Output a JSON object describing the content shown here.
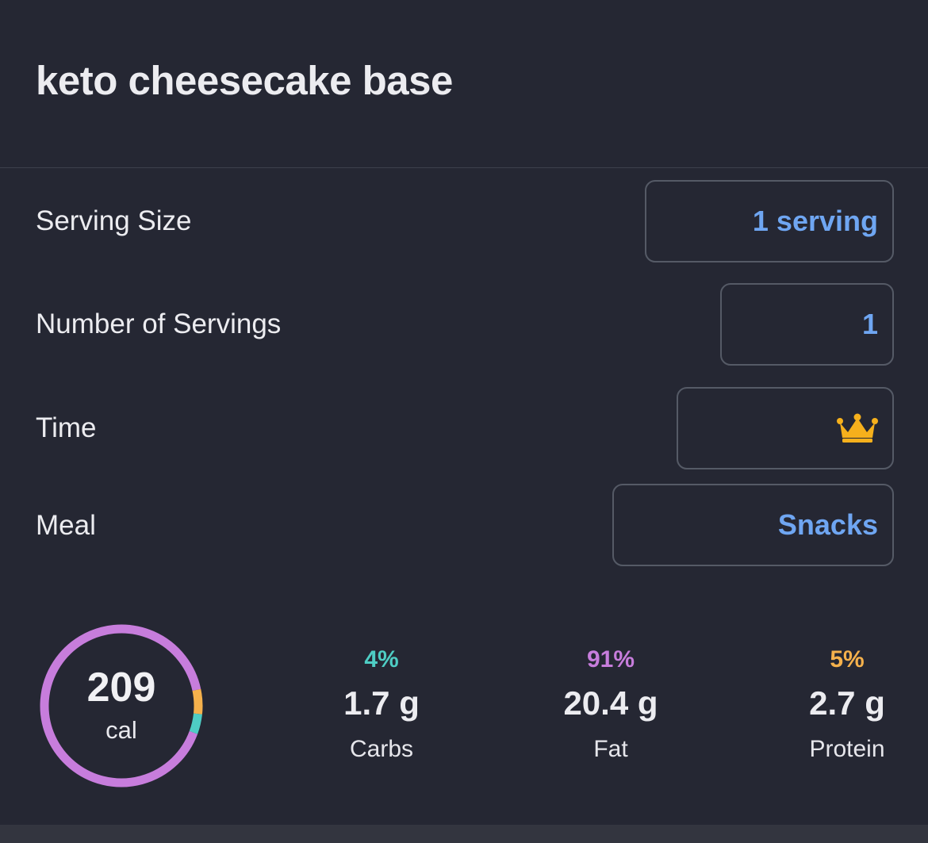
{
  "food": {
    "title": "keto cheesecake base"
  },
  "fields": {
    "serving_size": {
      "label": "Serving Size",
      "value": "1 serving"
    },
    "number_of_servings": {
      "label": "Number of Servings",
      "value": "1"
    },
    "time": {
      "label": "Time",
      "icon": "crown-icon"
    },
    "meal": {
      "label": "Meal",
      "value": "Snacks"
    }
  },
  "nutrition": {
    "calories": "209",
    "calories_unit": "cal",
    "macros": [
      {
        "percent": "4%",
        "grams": "1.7 g",
        "name": "Carbs",
        "color": "#4ecdc4",
        "fraction": 0.04
      },
      {
        "percent": "91%",
        "grams": "20.4 g",
        "name": "Fat",
        "color": "#c77ddc",
        "fraction": 0.91
      },
      {
        "percent": "5%",
        "grams": "2.7 g",
        "name": "Protein",
        "color": "#f5b14c",
        "fraction": 0.05
      }
    ]
  },
  "colors": {
    "background": "#252733",
    "accent_blue": "#6fa6f2",
    "carbs": "#4ecdc4",
    "fat": "#c77ddc",
    "protein": "#f5b14c"
  }
}
